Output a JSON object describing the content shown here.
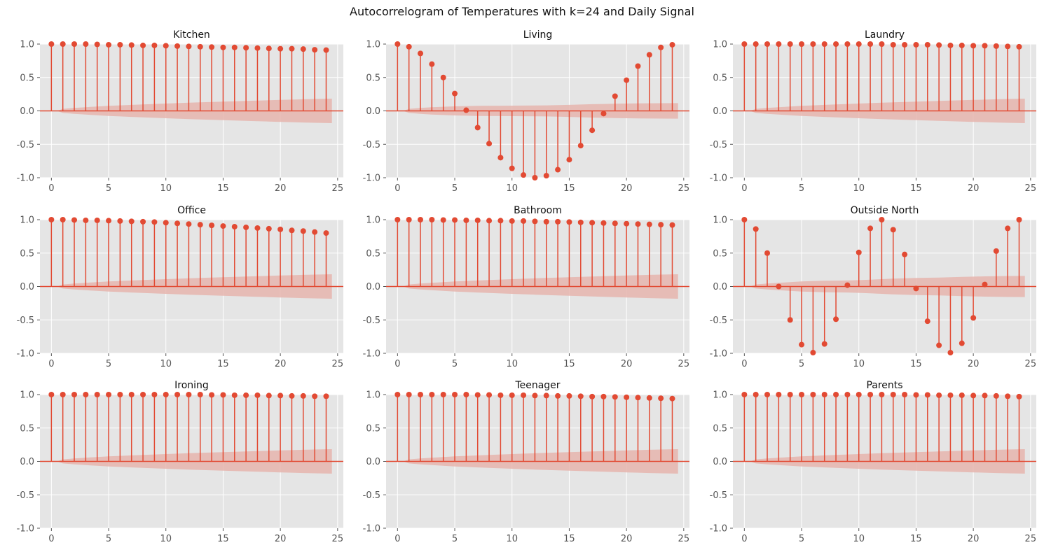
{
  "figure": {
    "title": "Autocorrelogram of Temperatures with k=24 and Daily Signal"
  },
  "style": {
    "axes_bg": "#e5e5e5",
    "grid": "#ffffff",
    "stem_color": "#e24a33",
    "band_color": "#e6b5ae"
  },
  "chart_data": [
    {
      "type": "stem",
      "title": "Kitchen",
      "xlim": [
        -1,
        25.5
      ],
      "ylim": [
        -1.0,
        1.0
      ],
      "xticks": [
        0,
        5,
        10,
        15,
        20,
        25
      ],
      "yticks": [
        1.0,
        0.5,
        0.0,
        -0.5,
        -1.0
      ],
      "lags": [
        0,
        1,
        2,
        3,
        4,
        5,
        6,
        7,
        8,
        9,
        10,
        11,
        12,
        13,
        14,
        15,
        16,
        17,
        18,
        19,
        20,
        21,
        22,
        23,
        24
      ],
      "values": [
        1.0,
        1.0,
        1.0,
        1.0,
        0.995,
        0.99,
        0.99,
        0.985,
        0.98,
        0.98,
        0.975,
        0.97,
        0.965,
        0.96,
        0.955,
        0.95,
        0.95,
        0.945,
        0.94,
        0.935,
        0.93,
        0.93,
        0.925,
        0.915,
        0.91
      ],
      "confidence_upper": [
        0,
        0.03,
        0.045,
        0.056,
        0.066,
        0.075,
        0.083,
        0.09,
        0.097,
        0.104,
        0.11,
        0.116,
        0.122,
        0.128,
        0.133,
        0.139,
        0.144,
        0.149,
        0.154,
        0.159,
        0.164,
        0.169,
        0.174,
        0.178,
        0.183
      ]
    },
    {
      "type": "stem",
      "title": "Living",
      "xlim": [
        -1,
        25.5
      ],
      "ylim": [
        -1.0,
        1.0
      ],
      "xticks": [
        0,
        5,
        10,
        15,
        20,
        25
      ],
      "yticks": [
        1.0,
        0.5,
        0.0,
        -0.5,
        -1.0
      ],
      "lags": [
        0,
        1,
        2,
        3,
        4,
        5,
        6,
        7,
        8,
        9,
        10,
        11,
        12,
        13,
        14,
        15,
        16,
        17,
        18,
        19,
        20,
        21,
        22,
        23,
        24
      ],
      "values": [
        1.0,
        0.96,
        0.86,
        0.7,
        0.5,
        0.26,
        0.01,
        -0.25,
        -0.49,
        -0.7,
        -0.86,
        -0.96,
        -1.0,
        -0.97,
        -0.88,
        -0.73,
        -0.52,
        -0.29,
        -0.04,
        0.22,
        0.46,
        0.67,
        0.84,
        0.95,
        0.99
      ],
      "confidence_upper": [
        0,
        0.03,
        0.045,
        0.055,
        0.062,
        0.068,
        0.072,
        0.075,
        0.077,
        0.078,
        0.079,
        0.08,
        0.081,
        0.083,
        0.086,
        0.09,
        0.095,
        0.1,
        0.104,
        0.108,
        0.11,
        0.112,
        0.114,
        0.115,
        0.116
      ]
    },
    {
      "type": "stem",
      "title": "Laundry",
      "xlim": [
        -1,
        25.5
      ],
      "ylim": [
        -1.0,
        1.0
      ],
      "xticks": [
        0,
        5,
        10,
        15,
        20,
        25
      ],
      "yticks": [
        1.0,
        0.5,
        0.0,
        -0.5,
        -1.0
      ],
      "lags": [
        0,
        1,
        2,
        3,
        4,
        5,
        6,
        7,
        8,
        9,
        10,
        11,
        12,
        13,
        14,
        15,
        16,
        17,
        18,
        19,
        20,
        21,
        22,
        23,
        24
      ],
      "values": [
        1.0,
        1.0,
        1.0,
        1.0,
        1.0,
        1.0,
        1.0,
        1.0,
        1.0,
        1.0,
        1.0,
        1.0,
        1.0,
        0.99,
        0.99,
        0.99,
        0.99,
        0.985,
        0.98,
        0.98,
        0.975,
        0.975,
        0.97,
        0.965,
        0.96
      ],
      "confidence_upper": [
        0,
        0.03,
        0.045,
        0.056,
        0.066,
        0.075,
        0.083,
        0.09,
        0.097,
        0.104,
        0.11,
        0.116,
        0.122,
        0.128,
        0.133,
        0.139,
        0.144,
        0.149,
        0.154,
        0.159,
        0.164,
        0.169,
        0.174,
        0.178,
        0.183
      ]
    },
    {
      "type": "stem",
      "title": "Office",
      "xlim": [
        -1,
        25.5
      ],
      "ylim": [
        -1.0,
        1.0
      ],
      "xticks": [
        0,
        5,
        10,
        15,
        20,
        25
      ],
      "yticks": [
        1.0,
        0.5,
        0.0,
        -0.5,
        -1.0
      ],
      "lags": [
        0,
        1,
        2,
        3,
        4,
        5,
        6,
        7,
        8,
        9,
        10,
        11,
        12,
        13,
        14,
        15,
        16,
        17,
        18,
        19,
        20,
        21,
        22,
        23,
        24
      ],
      "values": [
        1.0,
        1.0,
        0.995,
        0.99,
        0.99,
        0.985,
        0.98,
        0.975,
        0.97,
        0.965,
        0.955,
        0.945,
        0.935,
        0.925,
        0.915,
        0.905,
        0.895,
        0.885,
        0.875,
        0.865,
        0.855,
        0.84,
        0.83,
        0.815,
        0.8
      ],
      "confidence_upper": [
        0,
        0.03,
        0.045,
        0.056,
        0.066,
        0.075,
        0.083,
        0.09,
        0.097,
        0.104,
        0.11,
        0.116,
        0.122,
        0.128,
        0.133,
        0.139,
        0.144,
        0.149,
        0.154,
        0.159,
        0.164,
        0.169,
        0.174,
        0.178,
        0.183
      ]
    },
    {
      "type": "stem",
      "title": "Bathroom",
      "xlim": [
        -1,
        25.5
      ],
      "ylim": [
        -1.0,
        1.0
      ],
      "xticks": [
        0,
        5,
        10,
        15,
        20,
        25
      ],
      "yticks": [
        1.0,
        0.5,
        0.0,
        -0.5,
        -1.0
      ],
      "lags": [
        0,
        1,
        2,
        3,
        4,
        5,
        6,
        7,
        8,
        9,
        10,
        11,
        12,
        13,
        14,
        15,
        16,
        17,
        18,
        19,
        20,
        21,
        22,
        23,
        24
      ],
      "values": [
        1.0,
        1.0,
        1.0,
        1.0,
        0.995,
        0.995,
        0.99,
        0.99,
        0.985,
        0.985,
        0.98,
        0.98,
        0.975,
        0.97,
        0.97,
        0.965,
        0.96,
        0.955,
        0.95,
        0.945,
        0.94,
        0.935,
        0.93,
        0.925,
        0.92
      ],
      "confidence_upper": [
        0,
        0.03,
        0.045,
        0.056,
        0.066,
        0.075,
        0.083,
        0.09,
        0.097,
        0.104,
        0.11,
        0.116,
        0.122,
        0.128,
        0.133,
        0.139,
        0.144,
        0.149,
        0.154,
        0.159,
        0.164,
        0.169,
        0.174,
        0.178,
        0.183
      ]
    },
    {
      "type": "stem",
      "title": "Outside North",
      "xlim": [
        -1,
        25.5
      ],
      "ylim": [
        -1.0,
        1.0
      ],
      "xticks": [
        0,
        5,
        10,
        15,
        20,
        25
      ],
      "yticks": [
        1.0,
        0.5,
        0.0,
        -0.5,
        -1.0
      ],
      "lags": [
        0,
        1,
        2,
        3,
        4,
        5,
        6,
        7,
        8,
        9,
        10,
        11,
        12,
        13,
        14,
        15,
        16,
        17,
        18,
        19,
        20,
        21,
        22,
        23,
        24
      ],
      "values": [
        1.0,
        0.86,
        0.5,
        0.0,
        -0.5,
        -0.87,
        -0.99,
        -0.86,
        -0.49,
        0.02,
        0.51,
        0.87,
        1.0,
        0.85,
        0.48,
        -0.03,
        -0.52,
        -0.88,
        -0.99,
        -0.85,
        -0.47,
        0.03,
        0.53,
        0.87,
        1.0
      ],
      "confidence_upper": [
        0,
        0.03,
        0.045,
        0.055,
        0.065,
        0.075,
        0.082,
        0.086,
        0.088,
        0.09,
        0.095,
        0.102,
        0.11,
        0.118,
        0.124,
        0.128,
        0.131,
        0.134,
        0.138,
        0.143,
        0.148,
        0.152,
        0.155,
        0.157,
        0.158
      ]
    },
    {
      "type": "stem",
      "title": "Ironing",
      "xlim": [
        -1,
        25.5
      ],
      "ylim": [
        -1.0,
        1.0
      ],
      "xticks": [
        0,
        5,
        10,
        15,
        20,
        25
      ],
      "yticks": [
        1.0,
        0.5,
        0.0,
        -0.5,
        -1.0
      ],
      "lags": [
        0,
        1,
        2,
        3,
        4,
        5,
        6,
        7,
        8,
        9,
        10,
        11,
        12,
        13,
        14,
        15,
        16,
        17,
        18,
        19,
        20,
        21,
        22,
        23,
        24
      ],
      "values": [
        1.0,
        1.0,
        1.0,
        1.0,
        1.0,
        1.0,
        1.0,
        1.0,
        1.0,
        1.0,
        1.0,
        1.0,
        1.0,
        1.0,
        0.995,
        0.995,
        0.99,
        0.99,
        0.99,
        0.985,
        0.985,
        0.98,
        0.98,
        0.975,
        0.975
      ],
      "confidence_upper": [
        0,
        0.03,
        0.045,
        0.056,
        0.066,
        0.075,
        0.083,
        0.09,
        0.097,
        0.104,
        0.11,
        0.116,
        0.122,
        0.128,
        0.133,
        0.139,
        0.144,
        0.149,
        0.154,
        0.159,
        0.164,
        0.169,
        0.174,
        0.178,
        0.183
      ]
    },
    {
      "type": "stem",
      "title": "Teenager",
      "xlim": [
        -1,
        25.5
      ],
      "ylim": [
        -1.0,
        1.0
      ],
      "xticks": [
        0,
        5,
        10,
        15,
        20,
        25
      ],
      "yticks": [
        1.0,
        0.5,
        0.0,
        -0.5,
        -1.0
      ],
      "lags": [
        0,
        1,
        2,
        3,
        4,
        5,
        6,
        7,
        8,
        9,
        10,
        11,
        12,
        13,
        14,
        15,
        16,
        17,
        18,
        19,
        20,
        21,
        22,
        23,
        24
      ],
      "values": [
        1.0,
        1.0,
        1.0,
        1.0,
        1.0,
        1.0,
        1.0,
        0.995,
        0.995,
        0.99,
        0.99,
        0.99,
        0.985,
        0.985,
        0.98,
        0.98,
        0.975,
        0.97,
        0.97,
        0.965,
        0.96,
        0.955,
        0.95,
        0.945,
        0.94
      ],
      "confidence_upper": [
        0,
        0.03,
        0.045,
        0.056,
        0.066,
        0.075,
        0.083,
        0.09,
        0.097,
        0.104,
        0.11,
        0.116,
        0.122,
        0.128,
        0.133,
        0.139,
        0.144,
        0.149,
        0.154,
        0.159,
        0.164,
        0.169,
        0.174,
        0.178,
        0.183
      ]
    },
    {
      "type": "stem",
      "title": "Parents",
      "xlim": [
        -1,
        25.5
      ],
      "ylim": [
        -1.0,
        1.0
      ],
      "xticks": [
        0,
        5,
        10,
        15,
        20,
        25
      ],
      "yticks": [
        1.0,
        0.5,
        0.0,
        -0.5,
        -1.0
      ],
      "lags": [
        0,
        1,
        2,
        3,
        4,
        5,
        6,
        7,
        8,
        9,
        10,
        11,
        12,
        13,
        14,
        15,
        16,
        17,
        18,
        19,
        20,
        21,
        22,
        23,
        24
      ],
      "values": [
        1.0,
        1.0,
        1.0,
        1.0,
        1.0,
        1.0,
        1.0,
        1.0,
        1.0,
        1.0,
        1.0,
        1.0,
        1.0,
        1.0,
        1.0,
        0.995,
        0.995,
        0.99,
        0.99,
        0.99,
        0.985,
        0.985,
        0.98,
        0.975,
        0.97
      ],
      "confidence_upper": [
        0,
        0.03,
        0.045,
        0.056,
        0.066,
        0.075,
        0.083,
        0.09,
        0.097,
        0.104,
        0.11,
        0.116,
        0.122,
        0.128,
        0.133,
        0.139,
        0.144,
        0.149,
        0.154,
        0.159,
        0.164,
        0.169,
        0.174,
        0.178,
        0.183
      ]
    }
  ]
}
